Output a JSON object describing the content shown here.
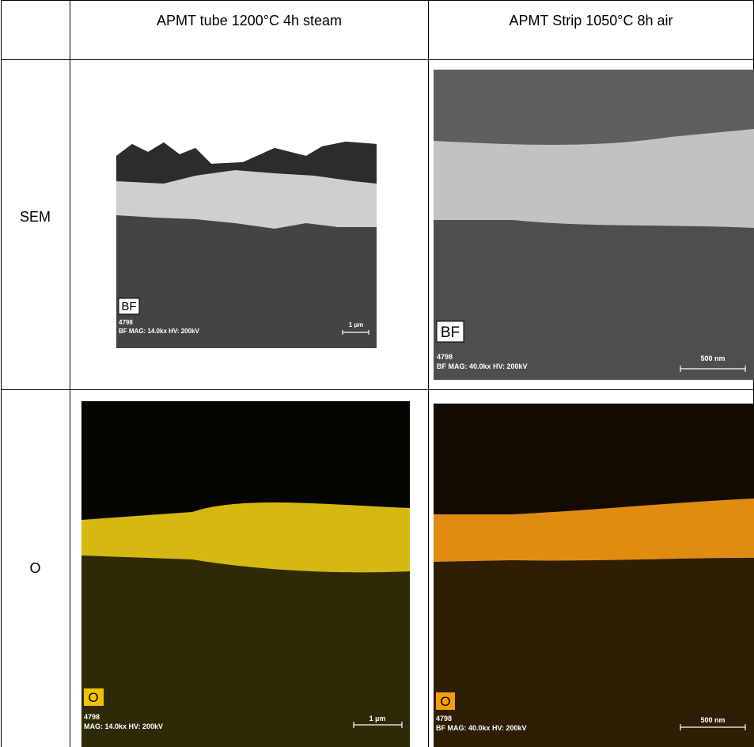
{
  "table": {
    "columns": [
      "APMT tube 1200°C 4h steam",
      "APMT Strip 1050°C 8h air"
    ],
    "rows": [
      {
        "label": "SEM",
        "cells": [
          {
            "badge": "BF",
            "id": "4798",
            "info": "BF  MAG: 14.0kx  HV: 200kV",
            "scale": "1 µm"
          },
          {
            "badge": "BF",
            "id": "4798",
            "info": "BF  MAG: 40.0kx  HV: 200kV",
            "scale": "500 nm"
          }
        ]
      },
      {
        "label": "O",
        "cells": [
          {
            "badge": "O",
            "id": "4798",
            "info": "MAG: 14.0kx  HV: 200kV",
            "scale": "1 µm"
          },
          {
            "badge": "O",
            "id": "4798",
            "info": "BF  MAG: 40.0kx  HV: 200kV",
            "scale": "500 nm"
          }
        ]
      }
    ]
  }
}
